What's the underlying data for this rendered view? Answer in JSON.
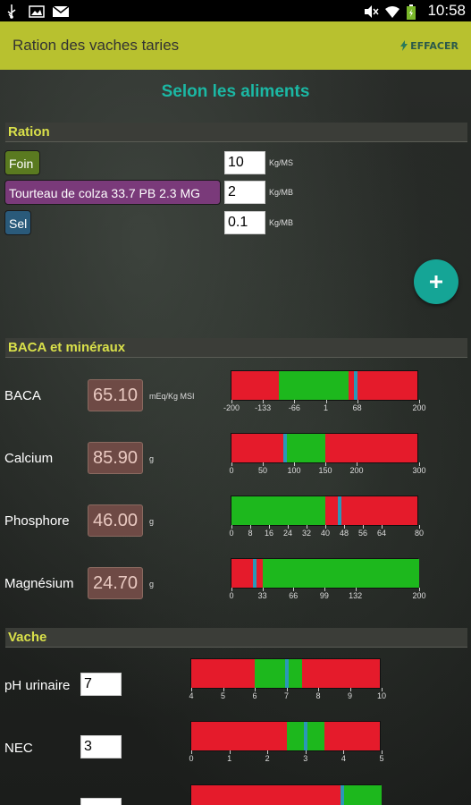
{
  "status_bar": {
    "time": "10:58",
    "left_icons": [
      "usb-icon",
      "image-icon",
      "mail-icon"
    ],
    "right_icons": [
      "mute-icon",
      "wifi-icon",
      "battery-icon"
    ]
  },
  "action_bar": {
    "title": "Ration des vaches taries",
    "action_label": "EFFACER",
    "accent_color": "#b8c12f"
  },
  "headline": "Selon les aliments",
  "ration": {
    "section_title": "Ration",
    "items": [
      {
        "label": "Foin",
        "value": "10",
        "unit": "Kg/MS",
        "color": "#5a7a20"
      },
      {
        "label": "Tourteau de colza 33.7 PB 2.3 MG",
        "value": "2",
        "unit": "Kg/MB",
        "color": "#7a3a7a"
      },
      {
        "label": "Sel",
        "value": "0.1",
        "unit": "Kg/MB",
        "color": "#2a5a7a"
      }
    ],
    "add_icon": "plus-icon"
  },
  "baca": {
    "section_title": "BACA et minéraux",
    "rows": [
      {
        "label": "BACA",
        "value": "65.10",
        "unit": "mEq/Kg MSI",
        "min": -200,
        "max": 200,
        "ticks": [
          {
            "v": -200,
            "t": "-200"
          },
          {
            "v": -133,
            "t": "-133"
          },
          {
            "v": -66,
            "t": "-66"
          },
          {
            "v": 1,
            "t": "1"
          },
          {
            "v": 68,
            "t": "68"
          },
          {
            "v": 200,
            "t": "200"
          }
        ],
        "green": [
          -100,
          50
        ],
        "marker": 65.1
      },
      {
        "label": "Calcium",
        "value": "85.90",
        "unit": "g",
        "min": 0,
        "max": 300,
        "ticks": [
          {
            "v": 0,
            "t": "0"
          },
          {
            "v": 50,
            "t": "50"
          },
          {
            "v": 100,
            "t": "100"
          },
          {
            "v": 150,
            "t": "150"
          },
          {
            "v": 200,
            "t": "200"
          },
          {
            "v": 300,
            "t": "300"
          }
        ],
        "green": [
          85.9,
          150
        ],
        "marker": 85.9
      },
      {
        "label": "Phosphore",
        "value": "46.00",
        "unit": "g",
        "min": 0,
        "max": 80,
        "ticks": [
          {
            "v": 0,
            "t": "0"
          },
          {
            "v": 8,
            "t": "8"
          },
          {
            "v": 16,
            "t": "16"
          },
          {
            "v": 24,
            "t": "24"
          },
          {
            "v": 32,
            "t": "32"
          },
          {
            "v": 40,
            "t": "40"
          },
          {
            "v": 48,
            "t": "48"
          },
          {
            "v": 56,
            "t": "56"
          },
          {
            "v": 64,
            "t": "64"
          },
          {
            "v": 80,
            "t": "80"
          }
        ],
        "green": [
          0,
          40
        ],
        "marker": 46
      },
      {
        "label": "Magnésium",
        "value": "24.70",
        "unit": "g",
        "min": 0,
        "max": 200,
        "ticks": [
          {
            "v": 0,
            "t": "0"
          },
          {
            "v": 33,
            "t": "33"
          },
          {
            "v": 66,
            "t": "66"
          },
          {
            "v": 99,
            "t": "99"
          },
          {
            "v": 132,
            "t": "132"
          },
          {
            "v": 200,
            "t": "200"
          }
        ],
        "green": [
          33,
          200
        ],
        "marker": 24.7
      }
    ]
  },
  "vache": {
    "section_title": "Vache",
    "rows": [
      {
        "label": "pH urinaire",
        "value": "7",
        "min": 4,
        "max": 10,
        "ticks": [
          {
            "v": 4,
            "t": "4"
          },
          {
            "v": 5,
            "t": "5"
          },
          {
            "v": 6,
            "t": "6"
          },
          {
            "v": 7,
            "t": "7"
          },
          {
            "v": 8,
            "t": "8"
          },
          {
            "v": 9,
            "t": "9"
          },
          {
            "v": 10,
            "t": "10"
          }
        ],
        "green": [
          6,
          7.5
        ],
        "marker": 7
      },
      {
        "label": "NEC",
        "value": "3",
        "min": 0,
        "max": 5,
        "ticks": [
          {
            "v": 0,
            "t": "0"
          },
          {
            "v": 1,
            "t": "1"
          },
          {
            "v": 2,
            "t": "2"
          },
          {
            "v": 3,
            "t": "3"
          },
          {
            "v": 4,
            "t": "4"
          },
          {
            "v": 5,
            "t": "5"
          }
        ],
        "green": [
          2.5,
          3.5
        ],
        "marker": 3
      }
    ]
  }
}
